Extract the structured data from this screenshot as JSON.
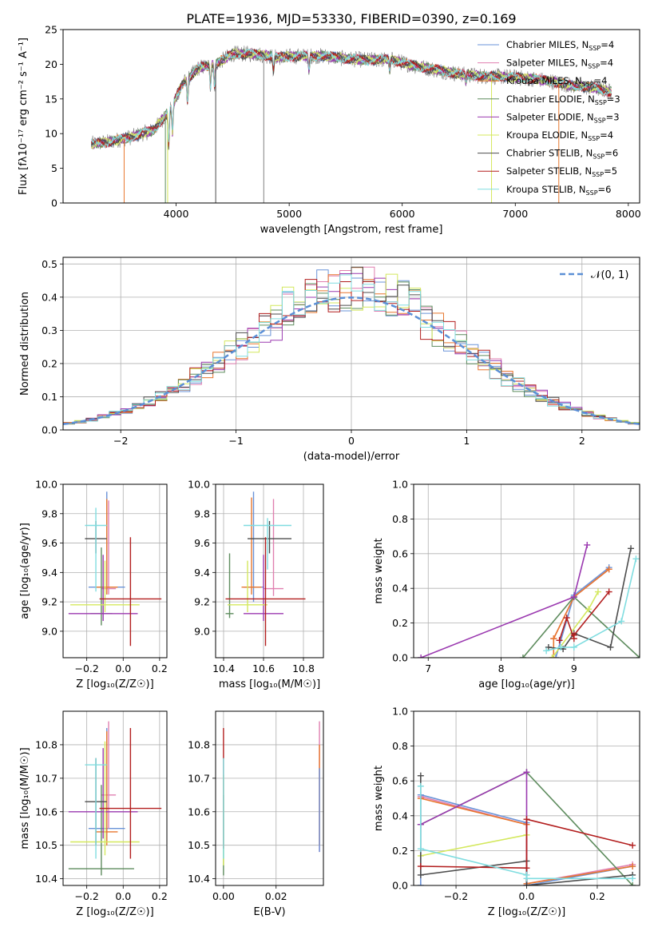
{
  "title": "PLATE=1936, MJD=53330, FIBERID=0390, z=0.169",
  "colors": {
    "Chabrier MILES": "#6a93d8",
    "Salpeter MILES": "#e07fb0",
    "Kroupa MILES": "#e8772e",
    "Chabrier ELODIE": "#5e8c5e",
    "Salpeter ELODIE": "#9b3ab0",
    "Kroupa ELODIE": "#d4e85e",
    "Chabrier STELIB": "#4d4d4d",
    "Salpeter STELIB": "#b31f1f",
    "Kroupa STELIB": "#80dde0"
  },
  "legend_spectrum": [
    {
      "name": "Chabrier MILES",
      "nssp": "4"
    },
    {
      "name": "Salpeter MILES",
      "nssp": "4"
    },
    {
      "name": "Kroupa MILES",
      "nssp": "4"
    },
    {
      "name": "Chabrier ELODIE",
      "nssp": "3"
    },
    {
      "name": "Salpeter ELODIE",
      "nssp": "3"
    },
    {
      "name": "Kroupa ELODIE",
      "nssp": "4"
    },
    {
      "name": "Chabrier STELIB",
      "nssp": "6"
    },
    {
      "name": "Salpeter STELIB",
      "nssp": "5"
    },
    {
      "name": "Kroupa STELIB",
      "nssp": "6"
    }
  ],
  "chart_data": [
    {
      "id": "spectrum",
      "type": "line",
      "title": "PLATE=1936, MJD=53330, FIBERID=0390, z=0.169",
      "xlabel": "wavelength [Angstrom, rest frame]",
      "ylabel": "Flux [fλ10⁻¹⁷ erg cm⁻² s⁻¹ A⁻¹]",
      "xlim": [
        3000,
        8100
      ],
      "ylim": [
        0,
        25
      ],
      "xticks": [
        4000,
        5000,
        6000,
        7000,
        8000
      ],
      "yticks": [
        0,
        5,
        10,
        15,
        20,
        25
      ],
      "grid": false,
      "legend": "right",
      "continuum": {
        "x": [
          3250,
          3400,
          3600,
          3800,
          3950,
          4050,
          4200,
          4350,
          4500,
          4700,
          4900,
          5100,
          5300,
          5500,
          5700,
          5900,
          6100,
          6300,
          6500,
          6700,
          6900,
          7100,
          7300,
          7500,
          7700,
          7850
        ],
        "y": [
          8.5,
          8.8,
          9.5,
          10.5,
          13.5,
          17,
          19.5,
          20,
          21.5,
          21.5,
          21,
          21.2,
          21.2,
          20.8,
          20.6,
          20.7,
          19.8,
          19.2,
          18.6,
          18.3,
          18.2,
          18,
          17.6,
          16.9,
          16.6,
          16
        ]
      }
    },
    {
      "id": "residuals",
      "type": "step",
      "xlabel": "(data-model)/error",
      "ylabel": "Normed distribution",
      "xlim": [
        -2.5,
        2.5
      ],
      "ylim": [
        0,
        0.52
      ],
      "xticks": [
        -2,
        -1,
        0,
        1,
        2
      ],
      "yticks": [
        0.0,
        0.1,
        0.2,
        0.3,
        0.4,
        0.5
      ],
      "grid": true,
      "legend": "top-right",
      "reference_label": "𝒩(0, 1)",
      "bin_width": 0.1
    },
    {
      "id": "z-age",
      "type": "errorbar",
      "xlabel": "Z [log₁₀(Z/Z☉)]",
      "ylabel": "age  [log₁₀(age/yr)]",
      "xlim": [
        -0.33,
        0.24
      ],
      "ylim": [
        8.82,
        10.0
      ],
      "xticks": [
        -0.2,
        0.0,
        0.2
      ],
      "yticks": [
        9.0,
        9.2,
        9.4,
        9.6,
        9.8,
        10.0
      ],
      "points": [
        {
          "series": "Chabrier MILES",
          "x": -0.09,
          "xerr": 0.1,
          "y": 9.3,
          "yerr": [
            0.05,
            0.65
          ]
        },
        {
          "series": "Salpeter MILES",
          "x": -0.08,
          "xerr": 0.04,
          "y": 9.29,
          "yerr": [
            0.04,
            0.6
          ]
        },
        {
          "series": "Kroupa MILES",
          "x": -0.09,
          "xerr": 0.06,
          "y": 9.3,
          "yerr": [
            0.05,
            0.6
          ]
        },
        {
          "series": "Chabrier ELODIE",
          "x": -0.12,
          "xerr": 0.06,
          "y": 9.12,
          "yerr": [
            0.08,
            0.45
          ]
        },
        {
          "series": "Salpeter ELODIE",
          "x": -0.11,
          "xerr": 0.19,
          "y": 9.12,
          "yerr": [
            0.05,
            0.4
          ]
        },
        {
          "series": "Kroupa ELODIE",
          "x": -0.1,
          "xerr": 0.19,
          "y": 9.18,
          "yerr": [
            0.05,
            0.3
          ]
        },
        {
          "series": "Chabrier STELIB",
          "x": -0.15,
          "xerr": 0.06,
          "y": 9.63,
          "yerr": [
            0.1,
            0.12
          ]
        },
        {
          "series": "Salpeter STELIB",
          "x": 0.04,
          "xerr": 0.17,
          "y": 9.22,
          "yerr": [
            0.32,
            0.42
          ]
        },
        {
          "series": "Kroupa STELIB",
          "x": -0.15,
          "xerr": 0.06,
          "y": 9.72,
          "yerr": [
            0.45,
            0.12
          ]
        }
      ]
    },
    {
      "id": "mass-age",
      "type": "errorbar",
      "xlabel": "mass [log₁₀(M/M☉)]",
      "ylabel": "",
      "xlim": [
        10.36,
        10.9
      ],
      "ylim": [
        8.82,
        10.0
      ],
      "xticks": [
        10.4,
        10.6,
        10.8
      ],
      "yticks": [
        9.0,
        9.2,
        9.4,
        9.6,
        9.8,
        10.0
      ],
      "points": [
        {
          "series": "Chabrier MILES",
          "x": 10.55,
          "xerr": 0.05,
          "y": 9.3,
          "yerr": [
            0.1,
            0.65
          ]
        },
        {
          "series": "Salpeter MILES",
          "x": 10.65,
          "xerr": 0.05,
          "y": 9.29,
          "yerr": [
            0.05,
            0.61
          ]
        },
        {
          "series": "Kroupa MILES",
          "x": 10.54,
          "xerr": 0.05,
          "y": 9.3,
          "yerr": [
            0.05,
            0.61
          ]
        },
        {
          "series": "Chabrier ELODIE",
          "x": 10.43,
          "xerr": 0.02,
          "y": 9.12,
          "yerr": [
            0.03,
            0.41
          ]
        },
        {
          "series": "Salpeter ELODIE",
          "x": 10.6,
          "xerr": 0.1,
          "y": 9.12,
          "yerr": [
            0.05,
            0.4
          ]
        },
        {
          "series": "Kroupa ELODIE",
          "x": 10.52,
          "xerr": 0.1,
          "y": 9.18,
          "yerr": [
            0.05,
            0.3
          ]
        },
        {
          "series": "Chabrier STELIB",
          "x": 10.63,
          "xerr": 0.11,
          "y": 9.63,
          "yerr": [
            0.1,
            0.12
          ]
        },
        {
          "series": "Salpeter STELIB",
          "x": 10.61,
          "xerr": 0.2,
          "y": 9.22,
          "yerr": [
            0.32,
            0.42
          ]
        },
        {
          "series": "Kroupa STELIB",
          "x": 10.62,
          "xerr": 0.12,
          "y": 9.72,
          "yerr": [
            0.3,
            0.05
          ]
        }
      ]
    },
    {
      "id": "age-weights",
      "type": "line",
      "xlabel": "age  [log₁₀(age/yr)]",
      "ylabel": "mass weight",
      "xlim": [
        6.8,
        9.9
      ],
      "ylim": [
        0,
        1.0
      ],
      "xticks": [
        7,
        8,
        9
      ],
      "yticks": [
        0.0,
        0.2,
        0.4,
        0.6,
        0.8,
        1.0
      ],
      "grid": true,
      "series": [
        {
          "name": "Chabrier MILES",
          "x": [
            8.75,
            9.0,
            9.48
          ],
          "y": [
            0.0,
            0.36,
            0.52
          ]
        },
        {
          "name": "Salpeter MILES",
          "x": [
            8.72,
            9.0,
            9.48
          ],
          "y": [
            0.11,
            0.35,
            0.51
          ]
        },
        {
          "name": "Kroupa MILES",
          "x": [
            8.72,
            8.72,
            9.0,
            9.48
          ],
          "y": [
            0.0,
            0.11,
            0.35,
            0.51
          ]
        },
        {
          "name": "Chabrier ELODIE",
          "x": [
            8.3,
            9.0,
            9.9
          ],
          "y": [
            0.0,
            0.35,
            0.0
          ]
        },
        {
          "name": "Salpeter ELODIE",
          "x": [
            6.9,
            9.0,
            9.18
          ],
          "y": [
            0.0,
            0.35,
            0.65
          ]
        },
        {
          "name": "Kroupa ELODIE",
          "x": [
            8.7,
            9.2,
            9.33
          ],
          "y": [
            0.0,
            0.28,
            0.38
          ]
        },
        {
          "name": "Chabrier STELIB",
          "x": [
            8.65,
            8.85,
            9.0,
            9.5,
            9.78
          ],
          "y": [
            0.06,
            0.05,
            0.14,
            0.06,
            0.63
          ]
        },
        {
          "name": "Salpeter STELIB",
          "x": [
            8.8,
            8.9,
            9.0,
            9.0,
            9.48
          ],
          "y": [
            0.1,
            0.23,
            0.11,
            0.13,
            0.38
          ]
        },
        {
          "name": "Kroupa STELIB",
          "x": [
            8.62,
            8.82,
            9.0,
            9.65,
            9.85
          ],
          "y": [
            0.04,
            0.06,
            0.06,
            0.21,
            0.57
          ]
        }
      ]
    },
    {
      "id": "z-mass",
      "type": "errorbar",
      "xlabel": "Z [log₁₀(Z/Z☉)]",
      "ylabel": "mass [log₁₀(M/M☉)]",
      "xlim": [
        -0.33,
        0.24
      ],
      "ylim": [
        10.38,
        10.9
      ],
      "xticks": [
        -0.2,
        0.0,
        0.2
      ],
      "yticks": [
        10.4,
        10.5,
        10.6,
        10.7,
        10.8
      ],
      "points": [
        {
          "series": "Chabrier MILES",
          "x": -0.09,
          "xerr": 0.1,
          "y": 10.55,
          "yerr": [
            0.04,
            0.3
          ]
        },
        {
          "series": "Salpeter MILES",
          "x": -0.08,
          "xerr": 0.04,
          "y": 10.65,
          "yerr": [
            0.1,
            0.22
          ]
        },
        {
          "series": "Kroupa MILES",
          "x": -0.09,
          "xerr": 0.06,
          "y": 10.54,
          "yerr": [
            0.04,
            0.3
          ]
        },
        {
          "series": "Chabrier ELODIE",
          "x": -0.12,
          "xerr": 0.18,
          "y": 10.43,
          "yerr": [
            0.02,
            0.25
          ]
        },
        {
          "series": "Salpeter ELODIE",
          "x": -0.11,
          "xerr": 0.19,
          "y": 10.6,
          "yerr": [
            0.08,
            0.19
          ]
        },
        {
          "series": "Kroupa ELODIE",
          "x": -0.1,
          "xerr": 0.19,
          "y": 10.51,
          "yerr": [
            0.04,
            0.3
          ]
        },
        {
          "series": "Chabrier STELIB",
          "x": -0.15,
          "xerr": 0.06,
          "y": 10.63,
          "yerr": [
            0.13,
            0.13
          ]
        },
        {
          "series": "Salpeter STELIB",
          "x": 0.04,
          "xerr": 0.17,
          "y": 10.61,
          "yerr": [
            0.15,
            0.24
          ]
        },
        {
          "series": "Kroupa STELIB",
          "x": -0.15,
          "xerr": 0.06,
          "y": 10.74,
          "yerr": [
            0.28,
            0.02
          ]
        }
      ]
    },
    {
      "id": "ebv-mass",
      "type": "errorbar",
      "xlabel": "E(B-V)",
      "ylabel": "",
      "xlim": [
        -0.003,
        0.038
      ],
      "ylim": [
        10.38,
        10.9
      ],
      "xticks": [
        0.0,
        0.02
      ],
      "yticks": [
        10.4,
        10.5,
        10.6,
        10.7,
        10.8
      ],
      "points": [
        {
          "series": "Salpeter MILES",
          "x": 0.0365,
          "xerr": 0,
          "y": 10.65,
          "yerr": [
            0.17,
            0.22
          ]
        },
        {
          "series": "Kroupa MILES",
          "x": 0.0365,
          "xerr": 0,
          "y": 10.55,
          "yerr": [
            0.05,
            0.25
          ]
        },
        {
          "series": "Chabrier MILES",
          "x": 0.0365,
          "xerr": 0,
          "y": 10.53,
          "yerr": [
            0.05,
            0.2
          ]
        },
        {
          "series": "Chabrier ELODIE",
          "x": 0.0,
          "xerr": 0,
          "y": 10.43,
          "yerr": [
            0.02,
            0.22
          ]
        },
        {
          "series": "Kroupa ELODIE",
          "x": 0.0,
          "xerr": 0,
          "y": 10.51,
          "yerr": [
            0.07,
            0.2
          ]
        },
        {
          "series": "Salpeter STELIB",
          "x": 0.0,
          "xerr": 0,
          "y": 10.61,
          "yerr": [
            0.12,
            0.24
          ]
        },
        {
          "series": "Kroupa STELIB",
          "x": 0.0,
          "xerr": 0,
          "y": 10.74,
          "yerr": [
            0.28,
            0.02
          ]
        }
      ]
    },
    {
      "id": "z-weights",
      "type": "line",
      "xlabel": "Z [log₁₀(Z/Z☉)]",
      "ylabel": "mass weight",
      "xlim": [
        -0.32,
        0.32
      ],
      "ylim": [
        0,
        1.0
      ],
      "xticks": [
        -0.2,
        0.0,
        0.2
      ],
      "yticks": [
        0.0,
        0.2,
        0.4,
        0.6,
        0.8,
        1.0
      ],
      "grid": true,
      "series": [
        {
          "name": "Chabrier MILES",
          "x": [
            -0.3,
            -0.3,
            0.0,
            0.0,
            0.3
          ],
          "y": [
            0.0,
            0.52,
            0.36,
            0.0,
            0.11
          ]
        },
        {
          "name": "Salpeter MILES",
          "x": [
            -0.3,
            0.0,
            0.0,
            0.3
          ],
          "y": [
            0.51,
            0.35,
            0.01,
            0.12
          ]
        },
        {
          "name": "Kroupa MILES",
          "x": [
            -0.3,
            0.0,
            0.0,
            0.3
          ],
          "y": [
            0.5,
            0.35,
            0.01,
            0.11
          ]
        },
        {
          "name": "Chabrier ELODIE",
          "x": [
            -0.3,
            0.0,
            0.3
          ],
          "y": [
            0.35,
            0.65,
            0.0
          ]
        },
        {
          "name": "Salpeter ELODIE",
          "x": [
            -0.3,
            0.0,
            0.0
          ],
          "y": [
            0.35,
            0.65,
            0.0
          ]
        },
        {
          "name": "Kroupa ELODIE",
          "x": [
            -0.3,
            0.0
          ],
          "y": [
            0.17,
            0.29
          ]
        },
        {
          "name": "Chabrier STELIB",
          "x": [
            -0.3,
            -0.3,
            0.0,
            0.0,
            0.3
          ],
          "y": [
            0.63,
            0.06,
            0.14,
            0.0,
            0.06
          ]
        },
        {
          "name": "Salpeter STELIB",
          "x": [
            -0.3,
            0.0,
            0.0,
            0.3
          ],
          "y": [
            0.11,
            0.1,
            0.38,
            0.23
          ]
        },
        {
          "name": "Kroupa STELIB",
          "x": [
            -0.3,
            -0.3,
            0.0,
            0.0,
            0.3
          ],
          "y": [
            0.57,
            0.21,
            0.06,
            0.04,
            0.04
          ]
        }
      ]
    }
  ]
}
